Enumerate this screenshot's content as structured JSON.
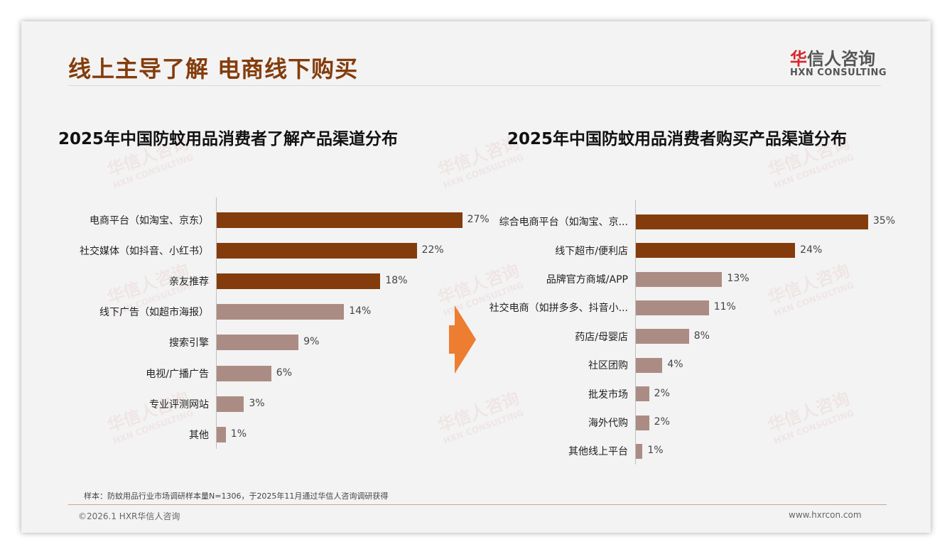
{
  "header": {
    "title": "线上主导了解 电商线下购买",
    "logo_cn_red": "华",
    "logo_cn": "信人咨询",
    "logo_en": "HXN CONSULTING"
  },
  "watermark": {
    "cn": "华信人咨询",
    "en": "HXN CONSULTING"
  },
  "colors": {
    "dark": "#843c0c",
    "light": "#ab8c84",
    "arrow": "#ed7d31"
  },
  "chart_data": [
    {
      "type": "bar",
      "orientation": "horizontal",
      "title": "2025年中国防蚊用品消费者了解产品渠道分布",
      "categories": [
        "电商平台（如淘宝、京东）",
        "社交媒体（如抖音、小红书）",
        "亲友推荐",
        "线下广告（如超市海报）",
        "搜索引擎",
        "电视/广播广告",
        "专业评测网站",
        "其他"
      ],
      "values": [
        27,
        22,
        18,
        14,
        9,
        6,
        3,
        1
      ],
      "labels": [
        "27%",
        "22%",
        "18%",
        "14%",
        "9%",
        "6%",
        "3%",
        "1%"
      ],
      "highlight_top": 3,
      "unit": "%"
    },
    {
      "type": "bar",
      "orientation": "horizontal",
      "title": "2025年中国防蚊用品消费者购买产品渠道分布",
      "categories": [
        "综合电商平台（如淘宝、京...",
        "线下超市/便利店",
        "品牌官方商城/APP",
        "社交电商（如拼多多、抖音小...",
        "药店/母婴店",
        "社区团购",
        "批发市场",
        "海外代购",
        "其他线上平台"
      ],
      "values": [
        35,
        24,
        13,
        11,
        8,
        4,
        2,
        2,
        1
      ],
      "labels": [
        "35%",
        "24%",
        "13%",
        "11%",
        "8%",
        "4%",
        "2%",
        "2%",
        "1%"
      ],
      "highlight_top": 2,
      "unit": "%"
    }
  ],
  "footer": {
    "note": "样本：防蚊用品行业市场调研样本量N=1306，于2025年11月通过华信人咨询调研获得",
    "copyright": "©2026.1 HXR华信人咨询",
    "url": "www.hxrcon.com"
  }
}
